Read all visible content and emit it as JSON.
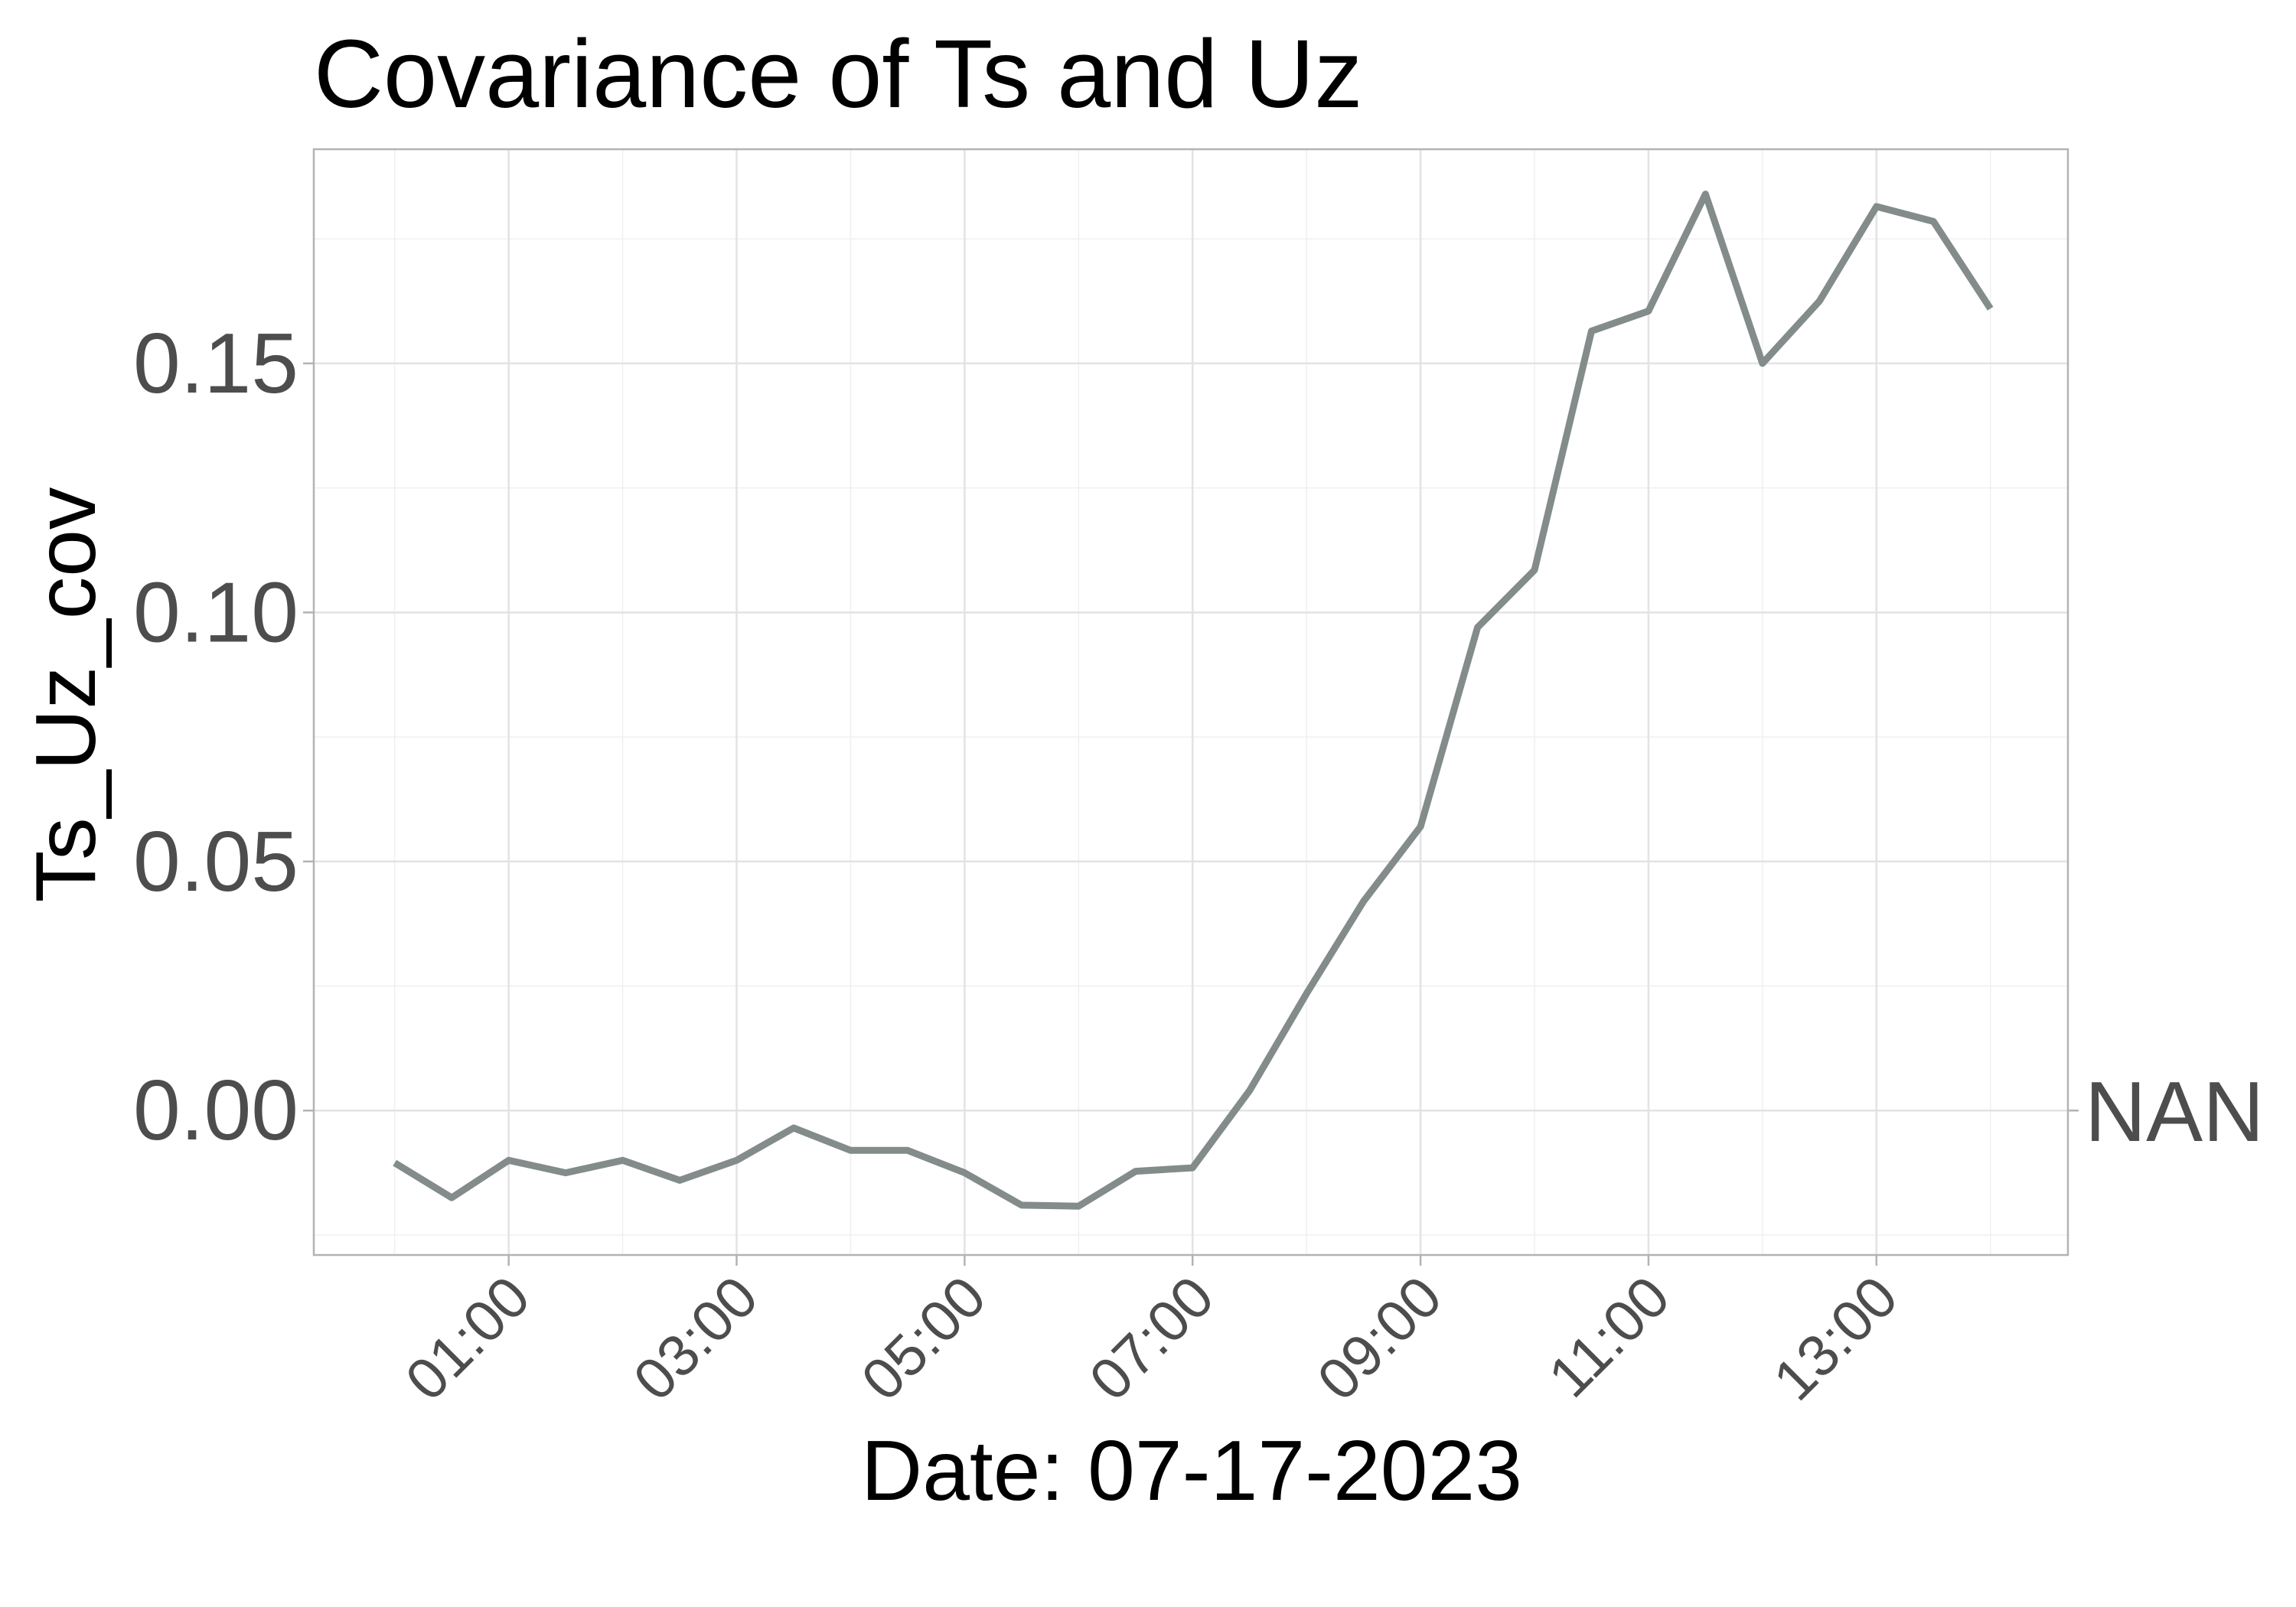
{
  "chart_data": {
    "type": "line",
    "title": "Covariance of Ts and Uz",
    "xlabel": "Date: 07-17-2023",
    "ylabel": "Ts_Uz_cov",
    "x_unit": "hour",
    "x_ticks": [
      {
        "value": 1,
        "label": "01:00"
      },
      {
        "value": 3,
        "label": "03:00"
      },
      {
        "value": 5,
        "label": "05:00"
      },
      {
        "value": 7,
        "label": "07:00"
      },
      {
        "value": 9,
        "label": "09:00"
      },
      {
        "value": 11,
        "label": "11:00"
      },
      {
        "value": 13,
        "label": "13:00"
      }
    ],
    "x_minor_ticks": [
      0,
      2,
      4,
      6,
      8,
      10,
      12,
      14
    ],
    "y_ticks": [
      {
        "value": 0.0,
        "label": "0.00"
      },
      {
        "value": 0.05,
        "label": "0.05"
      },
      {
        "value": 0.1,
        "label": "0.10"
      },
      {
        "value": 0.15,
        "label": "0.15"
      }
    ],
    "y_minor_ticks": [
      -0.025,
      0.025,
      0.075,
      0.125,
      0.175
    ],
    "xlim": [
      -0.71,
      14.68
    ],
    "ylim": [
      -0.029,
      0.193
    ],
    "secondary_y_label": "NAN",
    "secondary_y_value": 0.0,
    "grid": true,
    "line_color": "#838b8b",
    "series": [
      {
        "x": [
          0,
          0.5,
          1,
          1.5,
          2,
          2.5,
          3,
          3.5,
          4,
          4.5,
          5,
          5.5,
          6,
          6.5,
          7,
          7.5,
          8,
          8.5,
          9,
          9.5,
          10,
          10.5,
          11,
          11.5,
          12,
          12.5,
          13,
          13.5,
          14
        ],
        "values": [
          -0.0105,
          -0.0175,
          -0.01,
          -0.0125,
          -0.01,
          -0.014,
          -0.01,
          -0.0035,
          -0.008,
          -0.008,
          -0.0125,
          -0.019,
          -0.0192,
          -0.0122,
          -0.0115,
          0.004,
          0.0235,
          0.042,
          0.057,
          0.097,
          0.1085,
          0.1565,
          0.1605,
          0.184,
          0.15,
          0.1625,
          0.1815,
          0.1785,
          0.161
        ]
      }
    ]
  }
}
